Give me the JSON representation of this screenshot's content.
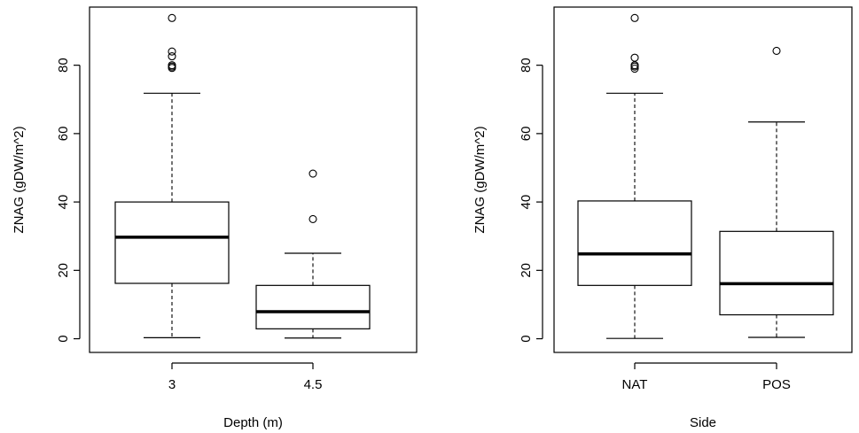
{
  "chart_data": [
    {
      "type": "boxplot",
      "xlabel": "Depth (m)",
      "ylabel": "ZNAG (gDW/m^2)",
      "ylim": [
        -4,
        97
      ],
      "yticks": [
        0,
        20,
        40,
        60,
        80
      ],
      "grid": false,
      "categories": [
        "3",
        "4.5"
      ],
      "boxes": [
        {
          "category": "3",
          "whisker_low": 0.3,
          "q1": 16.2,
          "median": 29.7,
          "q3": 40.0,
          "whisker_high": 71.8,
          "outliers": [
            79.2,
            79.6,
            80.0,
            82.6,
            84.0,
            93.8
          ]
        },
        {
          "category": "4.5",
          "whisker_low": 0.2,
          "q1": 2.9,
          "median": 7.9,
          "q3": 15.6,
          "whisker_high": 25.0,
          "outliers": [
            35.0,
            48.3
          ]
        }
      ]
    },
    {
      "type": "boxplot",
      "xlabel": "Side",
      "ylabel": "ZNAG (gDW/m^2)",
      "ylim": [
        -4,
        97
      ],
      "yticks": [
        0,
        20,
        40,
        60,
        80
      ],
      "grid": false,
      "categories": [
        "NAT",
        "POS"
      ],
      "boxes": [
        {
          "category": "NAT",
          "whisker_low": 0.1,
          "q1": 15.6,
          "median": 24.8,
          "q3": 40.3,
          "whisker_high": 71.8,
          "outliers": [
            79.0,
            79.6,
            80.0,
            82.2,
            93.8
          ]
        },
        {
          "category": "POS",
          "whisker_low": 0.4,
          "q1": 7.0,
          "median": 16.1,
          "q3": 31.4,
          "whisker_high": 63.4,
          "outliers": [
            84.2
          ]
        }
      ]
    }
  ]
}
